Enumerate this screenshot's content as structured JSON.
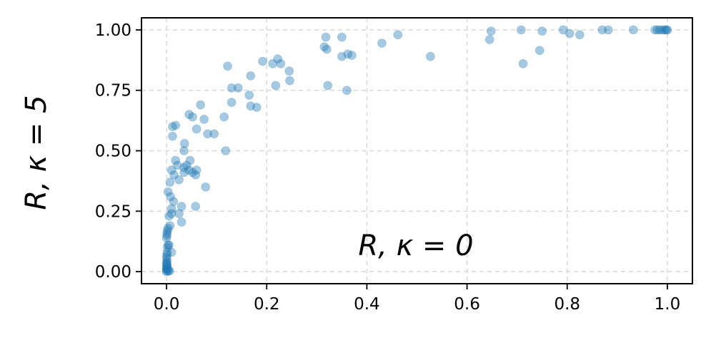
{
  "chart_data": {
    "type": "scatter",
    "title": "",
    "ylabel": "R, κ = 5",
    "annotation": "R, κ = 0",
    "xlim": [
      -0.05,
      1.05
    ],
    "ylim": [
      -0.05,
      1.05
    ],
    "xticks": [
      "0.0",
      "0.2",
      "0.4",
      "0.6",
      "0.8",
      "1.0"
    ],
    "yticks": [
      "0.00",
      "0.25",
      "0.50",
      "0.75",
      "1.00"
    ],
    "grid": true,
    "grid_style": "dashed",
    "marker_color": "#1f77b4",
    "marker_alpha": 0.4,
    "series": [
      {
        "points": [
          [
            0.0,
            0.0
          ],
          [
            0.0,
            0.005
          ],
          [
            0.0,
            0.01
          ],
          [
            0.0,
            0.015
          ],
          [
            0.001,
            0.02
          ],
          [
            0.001,
            0.025
          ],
          [
            0.0,
            0.03
          ],
          [
            0.001,
            0.035
          ],
          [
            0.0,
            0.04
          ],
          [
            0.001,
            0.05
          ],
          [
            0.0,
            0.06
          ],
          [
            0.001,
            0.07
          ],
          [
            0.001,
            0.08
          ],
          [
            0.002,
            0.1
          ],
          [
            0.003,
            0.11
          ],
          [
            0.005,
            0.11
          ],
          [
            0.0,
            0.14
          ],
          [
            0.001,
            0.15
          ],
          [
            0.001,
            0.16
          ],
          [
            0.002,
            0.17
          ],
          [
            0.003,
            0.18
          ],
          [
            0.004,
            0.002
          ],
          [
            0.006,
            0.003
          ],
          [
            0.003,
            0.008
          ],
          [
            0.01,
            0.08
          ],
          [
            0.007,
            0.19
          ],
          [
            0.005,
            0.23
          ],
          [
            0.01,
            0.24
          ],
          [
            0.01,
            0.26
          ],
          [
            0.014,
            0.29
          ],
          [
            0.025,
            0.24
          ],
          [
            0.03,
            0.27
          ],
          [
            0.03,
            0.205
          ],
          [
            0.003,
            0.33
          ],
          [
            0.008,
            0.31
          ],
          [
            0.007,
            0.37
          ],
          [
            0.015,
            0.4
          ],
          [
            0.01,
            0.42
          ],
          [
            0.022,
            0.44
          ],
          [
            0.018,
            0.46
          ],
          [
            0.025,
            0.38
          ],
          [
            0.035,
            0.41
          ],
          [
            0.035,
            0.43
          ],
          [
            0.04,
            0.44
          ],
          [
            0.045,
            0.42
          ],
          [
            0.047,
            0.46
          ],
          [
            0.052,
            0.41
          ],
          [
            0.058,
            0.4
          ],
          [
            0.06,
            0.42
          ],
          [
            0.035,
            0.5
          ],
          [
            0.036,
            0.53
          ],
          [
            0.058,
            0.27
          ],
          [
            0.078,
            0.35
          ],
          [
            0.012,
            0.56
          ],
          [
            0.012,
            0.6
          ],
          [
            0.018,
            0.605
          ],
          [
            0.045,
            0.65
          ],
          [
            0.052,
            0.64
          ],
          [
            0.06,
            0.59
          ],
          [
            0.068,
            0.69
          ],
          [
            0.075,
            0.63
          ],
          [
            0.082,
            0.57
          ],
          [
            0.095,
            0.57
          ],
          [
            0.115,
            0.64
          ],
          [
            0.118,
            0.5
          ],
          [
            0.122,
            0.85
          ],
          [
            0.13,
            0.76
          ],
          [
            0.13,
            0.7
          ],
          [
            0.143,
            0.76
          ],
          [
            0.165,
            0.73
          ],
          [
            0.168,
            0.685
          ],
          [
            0.168,
            0.81
          ],
          [
            0.18,
            0.68
          ],
          [
            0.192,
            0.87
          ],
          [
            0.212,
            0.86
          ],
          [
            0.218,
            0.77
          ],
          [
            0.222,
            0.88
          ],
          [
            0.228,
            0.86
          ],
          [
            0.245,
            0.83
          ],
          [
            0.246,
            0.79
          ],
          [
            0.315,
            0.93
          ],
          [
            0.318,
            0.97
          ],
          [
            0.32,
            0.92
          ],
          [
            0.322,
            0.77
          ],
          [
            0.35,
            0.97
          ],
          [
            0.35,
            0.89
          ],
          [
            0.36,
            0.75
          ],
          [
            0.362,
            0.9
          ],
          [
            0.37,
            0.895
          ],
          [
            0.43,
            0.945
          ],
          [
            0.462,
            0.98
          ],
          [
            0.527,
            0.89
          ],
          [
            0.645,
            0.96
          ],
          [
            0.648,
            0.995
          ],
          [
            0.708,
            1.0
          ],
          [
            0.712,
            0.86
          ],
          [
            0.745,
            0.915
          ],
          [
            0.75,
            0.995
          ],
          [
            0.792,
            1.0
          ],
          [
            0.805,
            0.985
          ],
          [
            0.825,
            0.98
          ],
          [
            0.87,
            1.0
          ],
          [
            0.882,
            1.0
          ],
          [
            0.932,
            1.0
          ],
          [
            0.975,
            1.0
          ],
          [
            0.98,
            1.0
          ],
          [
            0.985,
            1.0
          ],
          [
            0.99,
            1.0
          ],
          [
            0.995,
            1.0
          ],
          [
            0.998,
            1.0
          ],
          [
            1.0,
            1.0
          ]
        ]
      }
    ]
  }
}
